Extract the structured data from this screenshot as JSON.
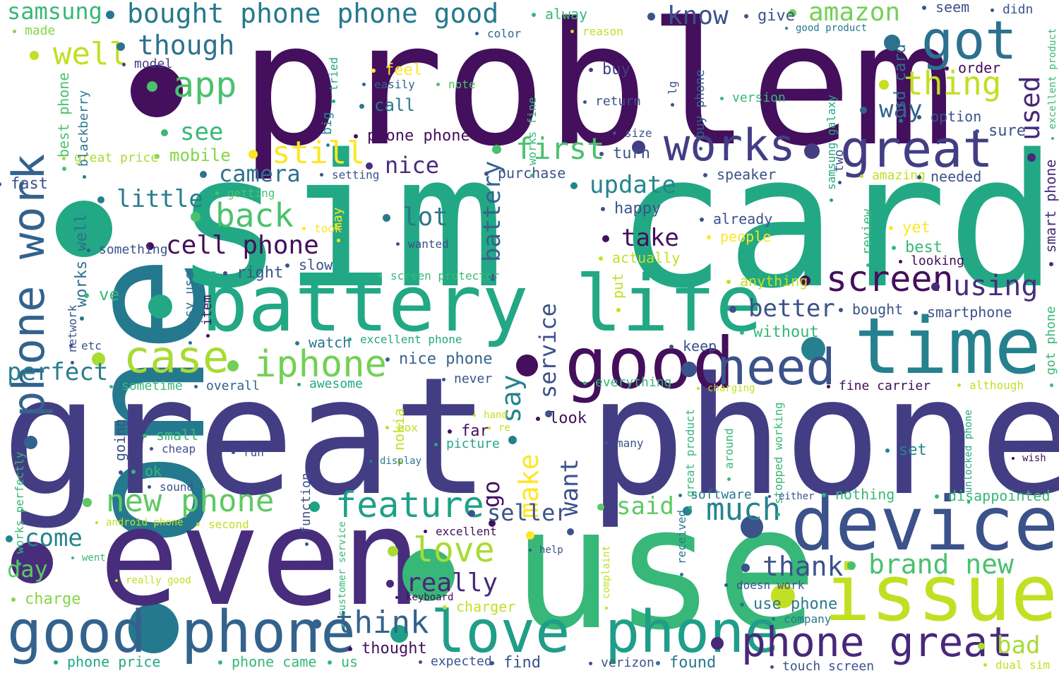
{
  "words": [
    {
      "text": "problem",
      "color": "#440f5c"
    },
    {
      "text": "one",
      "color": "#25798e"
    },
    {
      "text": "sim card",
      "color": "#22a884"
    },
    {
      "text": "great phone",
      "color": "#433d84"
    },
    {
      "text": "even",
      "color": "#472d7b"
    },
    {
      "text": "use",
      "color": "#37b878"
    },
    {
      "text": "battery life",
      "color": "#22a884"
    },
    {
      "text": "time",
      "color": "#26818e"
    },
    {
      "text": "device",
      "color": "#3b528b"
    },
    {
      "text": "issue",
      "color": "#c2df23"
    },
    {
      "text": "good",
      "color": "#440f5c"
    },
    {
      "text": "need",
      "color": "#3b528b"
    },
    {
      "text": "good phone",
      "color": "#33638d"
    },
    {
      "text": "love phone",
      "color": "#1f9e89"
    },
    {
      "text": "phone great",
      "color": "#482878"
    },
    {
      "text": "great",
      "color": "#433d84"
    },
    {
      "text": "got",
      "color": "#2c718e"
    },
    {
      "text": "works",
      "color": "#433d84"
    },
    {
      "text": "phone work",
      "color": "#33638d"
    },
    {
      "text": "case",
      "color": "#a8db34"
    },
    {
      "text": "iphone",
      "color": "#73d056"
    },
    {
      "text": "screen",
      "color": "#440f5c"
    },
    {
      "text": "using",
      "color": "#472d7b"
    },
    {
      "text": "feature",
      "color": "#1fa188"
    },
    {
      "text": "new phone",
      "color": "#5ec962"
    },
    {
      "text": "love",
      "color": "#a8db34"
    },
    {
      "text": "much",
      "color": "#25848e"
    },
    {
      "text": "think",
      "color": "#33638d"
    },
    {
      "text": "brand new",
      "color": "#4ac16d"
    },
    {
      "text": "thank",
      "color": "#3b528b"
    },
    {
      "text": "bought phone phone good",
      "color": "#25798e"
    },
    {
      "text": "amazon",
      "color": "#73d056"
    },
    {
      "text": "know",
      "color": "#3b528b"
    },
    {
      "text": "samsung",
      "color": "#37b878"
    },
    {
      "text": "well",
      "color": "#c2df23"
    },
    {
      "text": "though",
      "color": "#2c718e"
    },
    {
      "text": "app",
      "color": "#4ac16d"
    },
    {
      "text": "thing",
      "color": "#c2df23"
    },
    {
      "text": "used",
      "color": "#482878"
    },
    {
      "text": "way",
      "color": "#33638d"
    },
    {
      "text": "first",
      "color": "#4ac16d"
    },
    {
      "text": "still",
      "color": "#fde725"
    },
    {
      "text": "see",
      "color": "#37b878"
    },
    {
      "text": "camera",
      "color": "#2c718e"
    },
    {
      "text": "nice",
      "color": "#472d7b"
    },
    {
      "text": "update",
      "color": "#25848e"
    },
    {
      "text": "little",
      "color": "#287d8e"
    },
    {
      "text": "back",
      "color": "#4ac16d"
    },
    {
      "text": "lot",
      "color": "#2a788e"
    },
    {
      "text": "battery",
      "color": "#33638d"
    },
    {
      "text": "cell phone",
      "color": "#440f5c"
    },
    {
      "text": "take",
      "color": "#440f5c"
    },
    {
      "text": "perfect",
      "color": "#287d8e"
    },
    {
      "text": "say",
      "color": "#26818e"
    },
    {
      "text": "service",
      "color": "#3b528b"
    },
    {
      "text": "better",
      "color": "#3b528b"
    },
    {
      "text": "make",
      "color": "#fde725"
    },
    {
      "text": "want",
      "color": "#3b528b"
    },
    {
      "text": "go",
      "color": "#440f5c"
    },
    {
      "text": "seller",
      "color": "#3b528b"
    },
    {
      "text": "come",
      "color": "#25848e"
    },
    {
      "text": "day",
      "color": "#5ec962"
    },
    {
      "text": "really",
      "color": "#482878"
    },
    {
      "text": "said",
      "color": "#5ec962"
    },
    {
      "text": "bad",
      "color": "#a8db34"
    },
    {
      "text": "made",
      "color": "#86d549"
    },
    {
      "text": "model",
      "color": "#433d84"
    },
    {
      "text": "feel",
      "color": "#fde725"
    },
    {
      "text": "easily",
      "color": "#33638d"
    },
    {
      "text": "note",
      "color": "#4ac16d"
    },
    {
      "text": "call",
      "color": "#2a788e"
    },
    {
      "text": "phone phone",
      "color": "#440f5c"
    },
    {
      "text": "turn",
      "color": "#3b528b"
    },
    {
      "text": "purchase",
      "color": "#3b528b"
    },
    {
      "text": "speaker",
      "color": "#3b528b"
    },
    {
      "text": "mobile",
      "color": "#86d549"
    },
    {
      "text": "great price",
      "color": "#a8db34"
    },
    {
      "text": "blackberry",
      "color": "#2a788e"
    },
    {
      "text": "best phone",
      "color": "#4ac16d"
    },
    {
      "text": "big",
      "color": "#25848e"
    },
    {
      "text": "tried",
      "color": "#22a884"
    },
    {
      "text": "alway",
      "color": "#37b878"
    },
    {
      "text": "give",
      "color": "#3b528b"
    },
    {
      "text": "seem",
      "color": "#3b528b"
    },
    {
      "text": "didn",
      "color": "#3b528b"
    },
    {
      "text": "color",
      "color": "#33638d"
    },
    {
      "text": "reason",
      "color": "#c2df23"
    },
    {
      "text": "good product",
      "color": "#2a788e"
    },
    {
      "text": "buy",
      "color": "#433d84"
    },
    {
      "text": "return",
      "color": "#3b528b"
    },
    {
      "text": "version",
      "color": "#37b878"
    },
    {
      "text": "order",
      "color": "#440f5c"
    },
    {
      "text": "option",
      "color": "#3b528b"
    },
    {
      "text": "size",
      "color": "#3b528b"
    },
    {
      "text": "works fine",
      "color": "#37b878"
    },
    {
      "text": "lg",
      "color": "#3b528b"
    },
    {
      "text": "buy phone",
      "color": "#33638d"
    },
    {
      "text": "samsung galaxy",
      "color": "#22a884"
    },
    {
      "text": "sd card",
      "color": "#2c718e"
    },
    {
      "text": "excellent product",
      "color": "#37b878"
    },
    {
      "text": "sure",
      "color": "#3b528b"
    },
    {
      "text": "two",
      "color": "#3b528b"
    },
    {
      "text": "amazing",
      "color": "#c2df23"
    },
    {
      "text": "needed",
      "color": "#3b528b"
    },
    {
      "text": "smart phone",
      "color": "#472d7b"
    },
    {
      "text": "fast",
      "color": "#3b528b"
    },
    {
      "text": "works well",
      "color": "#2c718e"
    },
    {
      "text": "getting",
      "color": "#4ac16d"
    },
    {
      "text": "setting",
      "color": "#3b528b"
    },
    {
      "text": "happy",
      "color": "#3b528b"
    },
    {
      "text": "already",
      "color": "#3b528b"
    },
    {
      "text": "people",
      "color": "#fde725"
    },
    {
      "text": "yet",
      "color": "#fde725"
    },
    {
      "text": "best",
      "color": "#37b878"
    },
    {
      "text": "looking",
      "color": "#440f5c"
    },
    {
      "text": "something",
      "color": "#3b528b"
    },
    {
      "text": "took",
      "color": "#fde725"
    },
    {
      "text": "wanted",
      "color": "#3b528b"
    },
    {
      "text": "actually",
      "color": "#c2df23"
    },
    {
      "text": "may",
      "color": "#fde725"
    },
    {
      "text": "right",
      "color": "#3b528b"
    },
    {
      "text": "slow",
      "color": "#3b528b"
    },
    {
      "text": "screen protector",
      "color": "#37b878"
    },
    {
      "text": "put",
      "color": "#c2df23"
    },
    {
      "text": "anything",
      "color": "#c2df23"
    },
    {
      "text": "review",
      "color": "#37b878"
    },
    {
      "text": "ve",
      "color": "#37b878"
    },
    {
      "text": "easy use",
      "color": "#2c718e"
    },
    {
      "text": "item",
      "color": "#440f5c"
    },
    {
      "text": "smartphone",
      "color": "#3b528b"
    },
    {
      "text": "bought",
      "color": "#3b528b"
    },
    {
      "text": "without",
      "color": "#37b878"
    },
    {
      "text": "network",
      "color": "#3b528b"
    },
    {
      "text": "etc",
      "color": "#3b528b"
    },
    {
      "text": "watch",
      "color": "#2a788e"
    },
    {
      "text": "excellent phone",
      "color": "#22a884"
    },
    {
      "text": "keep",
      "color": "#3b528b"
    },
    {
      "text": "got phone",
      "color": "#37b878"
    },
    {
      "text": "nice phone",
      "color": "#33638d"
    },
    {
      "text": "sometime",
      "color": "#37b878"
    },
    {
      "text": "overall",
      "color": "#33638d"
    },
    {
      "text": "awesome",
      "color": "#22a884"
    },
    {
      "text": "never",
      "color": "#3b528b"
    },
    {
      "text": "everything",
      "color": "#37b878"
    },
    {
      "text": "fine carrier",
      "color": "#440f5c"
    },
    {
      "text": "although",
      "color": "#c2df23"
    },
    {
      "text": "charging",
      "color": "#c2df23"
    },
    {
      "text": "great product",
      "color": "#37b878"
    },
    {
      "text": "stopped working",
      "color": "#37b878"
    },
    {
      "text": "unlocked phone",
      "color": "#22a884"
    },
    {
      "text": "nokia",
      "color": "#c2df23"
    },
    {
      "text": "far",
      "color": "#440f5c"
    },
    {
      "text": "look",
      "color": "#440f5c"
    },
    {
      "text": "going",
      "color": "#3b528b"
    },
    {
      "text": "small",
      "color": "#37b878"
    },
    {
      "text": "box",
      "color": "#c2df23"
    },
    {
      "text": "hand",
      "color": "#c2df23"
    },
    {
      "text": "re",
      "color": "#c2df23"
    },
    {
      "text": "picture",
      "color": "#22a884"
    },
    {
      "text": "cheap",
      "color": "#3b528b"
    },
    {
      "text": "many",
      "color": "#3b528b"
    },
    {
      "text": "around",
      "color": "#37b878"
    },
    {
      "text": "set",
      "color": "#25848e"
    },
    {
      "text": "wish",
      "color": "#440f5c"
    },
    {
      "text": "run",
      "color": "#3b528b"
    },
    {
      "text": "ok",
      "color": "#37b878"
    },
    {
      "text": "display",
      "color": "#2a788e"
    },
    {
      "text": "works perfectly",
      "color": "#37b878"
    },
    {
      "text": "sound",
      "color": "#3b528b"
    },
    {
      "text": "function",
      "color": "#3b528b"
    },
    {
      "text": "software",
      "color": "#2a788e"
    },
    {
      "text": "either",
      "color": "#3b528b"
    },
    {
      "text": "nothing",
      "color": "#37b878"
    },
    {
      "text": "disappointed",
      "color": "#37b878"
    },
    {
      "text": "android phone",
      "color": "#c2df23"
    },
    {
      "text": "second",
      "color": "#c2df23"
    },
    {
      "text": "excellent",
      "color": "#440f5c"
    },
    {
      "text": "received",
      "color": "#2a788e"
    },
    {
      "text": "customer service",
      "color": "#37b878"
    },
    {
      "text": "complaint",
      "color": "#c2df23"
    },
    {
      "text": "went",
      "color": "#37b878"
    },
    {
      "text": "help",
      "color": "#3b528b"
    },
    {
      "text": "really good",
      "color": "#c2df23"
    },
    {
      "text": "charge",
      "color": "#86d549"
    },
    {
      "text": "keyboard",
      "color": "#440f5c"
    },
    {
      "text": "doesn work",
      "color": "#3b528b"
    },
    {
      "text": "charger",
      "color": "#c2df23"
    },
    {
      "text": "use phone",
      "color": "#2a788e"
    },
    {
      "text": "company",
      "color": "#2a788e"
    },
    {
      "text": "thought",
      "color": "#440f5c"
    },
    {
      "text": "phone price",
      "color": "#22a884"
    },
    {
      "text": "phone came",
      "color": "#37b878"
    },
    {
      "text": "us",
      "color": "#37b878"
    },
    {
      "text": "expected",
      "color": "#3b528b"
    },
    {
      "text": "find",
      "color": "#3b528b"
    },
    {
      "text": "verizon",
      "color": "#3b528b"
    },
    {
      "text": "found",
      "color": "#2a788e"
    },
    {
      "text": "touch screen",
      "color": "#3b528b"
    },
    {
      "text": "dual sim",
      "color": "#c2df23"
    }
  ]
}
